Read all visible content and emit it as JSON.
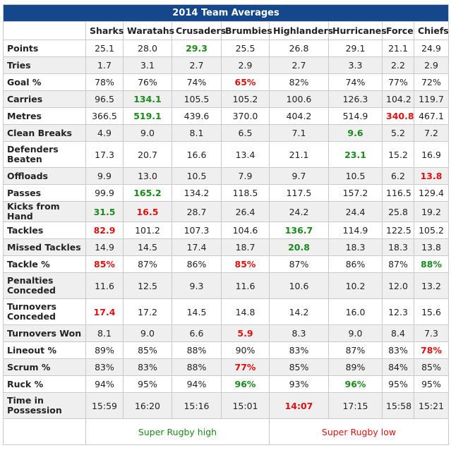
{
  "title": "2014 Team Averages",
  "teams": [
    "Sharks",
    "Waratahs",
    "Crusaders",
    "Brumbies",
    "Highlanders",
    "Hurricanes",
    "Force",
    "Chiefs"
  ],
  "rows": [
    {
      "label": "Points",
      "values": [
        "25.1",
        "28.0",
        "29.3",
        "25.5",
        "26.8",
        "29.1",
        "21.1",
        "24.9"
      ],
      "marks": [
        "",
        "",
        "high",
        "",
        "",
        "",
        "",
        ""
      ]
    },
    {
      "label": "Tries",
      "values": [
        "1.7",
        "3.1",
        "2.7",
        "2.9",
        "2.7",
        "3.3",
        "2.2",
        "2.9"
      ],
      "marks": [
        "",
        "",
        "",
        "",
        "",
        "",
        "",
        ""
      ]
    },
    {
      "label": "Goal %",
      "values": [
        "78%",
        "76%",
        "74%",
        "65%",
        "82%",
        "74%",
        "77%",
        "72%"
      ],
      "marks": [
        "",
        "",
        "",
        "low",
        "",
        "",
        "",
        ""
      ]
    },
    {
      "label": "Carries",
      "values": [
        "96.5",
        "134.1",
        "105.5",
        "105.2",
        "100.6",
        "126.3",
        "104.2",
        "119.7"
      ],
      "marks": [
        "",
        "high",
        "",
        "",
        "",
        "",
        "",
        ""
      ]
    },
    {
      "label": "Metres",
      "values": [
        "366.5",
        "519.1",
        "439.6",
        "370.0",
        "404.2",
        "514.9",
        "340.8",
        "467.1"
      ],
      "marks": [
        "",
        "high",
        "",
        "",
        "",
        "",
        "low",
        ""
      ]
    },
    {
      "label": "Clean Breaks",
      "values": [
        "4.9",
        "9.0",
        "8.1",
        "6.5",
        "7.1",
        "9.6",
        "5.2",
        "7.2"
      ],
      "marks": [
        "",
        "",
        "",
        "",
        "",
        "high",
        "",
        ""
      ]
    },
    {
      "label": "Defenders Beaten",
      "values": [
        "17.3",
        "20.7",
        "16.6",
        "13.4",
        "21.1",
        "23.1",
        "15.2",
        "16.9"
      ],
      "marks": [
        "",
        "",
        "",
        "",
        "",
        "high",
        "",
        ""
      ],
      "tall": true
    },
    {
      "label": "Offloads",
      "values": [
        "9.9",
        "13.0",
        "10.5",
        "7.9",
        "9.7",
        "10.5",
        "6.2",
        "13.8"
      ],
      "marks": [
        "",
        "",
        "",
        "",
        "",
        "",
        "",
        "low"
      ]
    },
    {
      "label": "Passes",
      "values": [
        "99.9",
        "165.2",
        "134.2",
        "118.5",
        "117.5",
        "157.2",
        "116.5",
        "129.4"
      ],
      "marks": [
        "",
        "high",
        "",
        "",
        "",
        "",
        "",
        ""
      ]
    },
    {
      "label": "Kicks from Hand",
      "values": [
        "31.5",
        "16.5",
        "28.7",
        "26.4",
        "24.2",
        "24.4",
        "25.8",
        "19.2"
      ],
      "marks": [
        "high",
        "low",
        "",
        "",
        "",
        "",
        "",
        ""
      ]
    },
    {
      "label": "Tackles",
      "values": [
        "82.9",
        "101.2",
        "107.3",
        "104.6",
        "136.7",
        "114.9",
        "122.5",
        "105.2"
      ],
      "marks": [
        "low",
        "",
        "",
        "",
        "high",
        "",
        "",
        ""
      ]
    },
    {
      "label": "Missed Tackles",
      "values": [
        "14.9",
        "14.5",
        "17.4",
        "18.7",
        "20.8",
        "18.3",
        "18.3",
        "13.8"
      ],
      "marks": [
        "",
        "",
        "",
        "",
        "high",
        "",
        "",
        ""
      ]
    },
    {
      "label": "Tackle %",
      "values": [
        "85%",
        "87%",
        "86%",
        "85%",
        "87%",
        "86%",
        "87%",
        "88%"
      ],
      "marks": [
        "low",
        "",
        "",
        "low",
        "",
        "",
        "",
        "high"
      ]
    },
    {
      "label": "Penalties Conceded",
      "values": [
        "11.6",
        "12.5",
        "9.3",
        "11.6",
        "10.6",
        "10.2",
        "12.0",
        "13.2"
      ],
      "marks": [
        "",
        "",
        "",
        "",
        "",
        "",
        "",
        ""
      ],
      "tall": true
    },
    {
      "label": "Turnovers Conceded",
      "values": [
        "17.4",
        "17.2",
        "14.5",
        "14.8",
        "14.2",
        "16.0",
        "12.3",
        "15.6"
      ],
      "marks": [
        "low",
        "",
        "",
        "",
        "",
        "",
        "",
        ""
      ],
      "tall": true
    },
    {
      "label": "Turnovers Won",
      "values": [
        "8.1",
        "9.0",
        "6.6",
        "5.9",
        "8.3",
        "9.0",
        "8.4",
        "7.3"
      ],
      "marks": [
        "",
        "",
        "",
        "low",
        "",
        "",
        "",
        ""
      ]
    },
    {
      "label": "Lineout %",
      "values": [
        "89%",
        "85%",
        "88%",
        "90%",
        "83%",
        "87%",
        "83%",
        "78%"
      ],
      "marks": [
        "",
        "",
        "",
        "",
        "",
        "",
        "",
        "low"
      ]
    },
    {
      "label": "Scrum %",
      "values": [
        "83%",
        "83%",
        "88%",
        "77%",
        "85%",
        "89%",
        "84%",
        "85%"
      ],
      "marks": [
        "",
        "",
        "",
        "low",
        "",
        "",
        "",
        ""
      ]
    },
    {
      "label": "Ruck %",
      "values": [
        "94%",
        "95%",
        "94%",
        "96%",
        "93%",
        "96%",
        "95%",
        "95%"
      ],
      "marks": [
        "",
        "",
        "",
        "high",
        "",
        "high",
        "",
        ""
      ]
    },
    {
      "label": "Time in Possession",
      "values": [
        "15:59",
        "16:20",
        "15:16",
        "15:01",
        "14:07",
        "17:15",
        "15:58",
        "15:21"
      ],
      "marks": [
        "",
        "",
        "",
        "",
        "low",
        "",
        "",
        ""
      ],
      "tall": true
    }
  ],
  "legend": {
    "high": "Super Rugby high",
    "low": "Super Rugby low"
  },
  "colors": {
    "header_bg": "#15478c",
    "high": "#1a8a1a",
    "low": "#dd1111",
    "stripe": "#efefef"
  }
}
